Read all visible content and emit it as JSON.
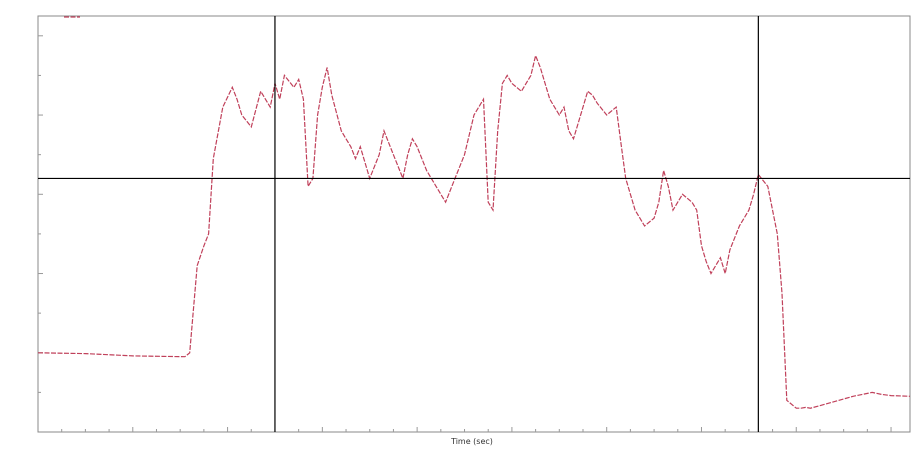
{
  "chart_data": {
    "type": "line",
    "title": "",
    "xlabel": "Time (sec)",
    "ylabel": "",
    "xlim": [
      0,
      920
    ],
    "ylim": [
      0,
      1050
    ],
    "grid": false,
    "legend_position": "top-left",
    "colors": {
      "series": "#c0405a",
      "cursor": "#000000",
      "frame": "#888888",
      "background": "#ffffff"
    },
    "cursors": {
      "vertical": [
        250,
        760
      ],
      "horizontal": [
        640
      ]
    },
    "series": [
      {
        "name": "",
        "x": [
          0,
          50,
          100,
          155,
          160,
          168,
          175,
          180,
          185,
          195,
          205,
          210,
          215,
          225,
          235,
          245,
          250,
          255,
          260,
          265,
          270,
          275,
          280,
          285,
          290,
          295,
          300,
          305,
          310,
          320,
          325,
          330,
          335,
          340,
          350,
          360,
          365,
          375,
          385,
          390,
          395,
          400,
          410,
          420,
          430,
          440,
          450,
          460,
          470,
          475,
          480,
          485,
          490,
          495,
          500,
          510,
          520,
          525,
          530,
          540,
          550,
          555,
          560,
          565,
          575,
          580,
          585,
          590,
          600,
          610,
          615,
          620,
          630,
          640,
          650,
          655,
          660,
          665,
          670,
          680,
          690,
          695,
          700,
          705,
          710,
          720,
          725,
          730,
          740,
          750,
          755,
          760,
          770,
          780,
          785,
          790,
          800,
          805,
          810,
          815,
          830,
          860,
          880,
          890,
          900,
          920
        ],
        "y": [
          200,
          198,
          192,
          190,
          200,
          420,
          470,
          500,
          690,
          820,
          870,
          840,
          800,
          770,
          860,
          820,
          880,
          840,
          900,
          885,
          870,
          890,
          840,
          620,
          640,
          800,
          870,
          920,
          850,
          760,
          740,
          720,
          690,
          720,
          640,
          700,
          760,
          700,
          640,
          700,
          740,
          720,
          660,
          620,
          580,
          640,
          700,
          800,
          840,
          580,
          560,
          760,
          880,
          900,
          880,
          860,
          900,
          950,
          920,
          840,
          800,
          820,
          760,
          740,
          820,
          860,
          850,
          830,
          800,
          820,
          730,
          640,
          560,
          520,
          540,
          580,
          660,
          620,
          560,
          600,
          580,
          560,
          470,
          430,
          400,
          440,
          400,
          460,
          520,
          560,
          600,
          650,
          620,
          500,
          350,
          80,
          60,
          60,
          62,
          60,
          70,
          90,
          100,
          95,
          92,
          90
        ]
      }
    ]
  }
}
